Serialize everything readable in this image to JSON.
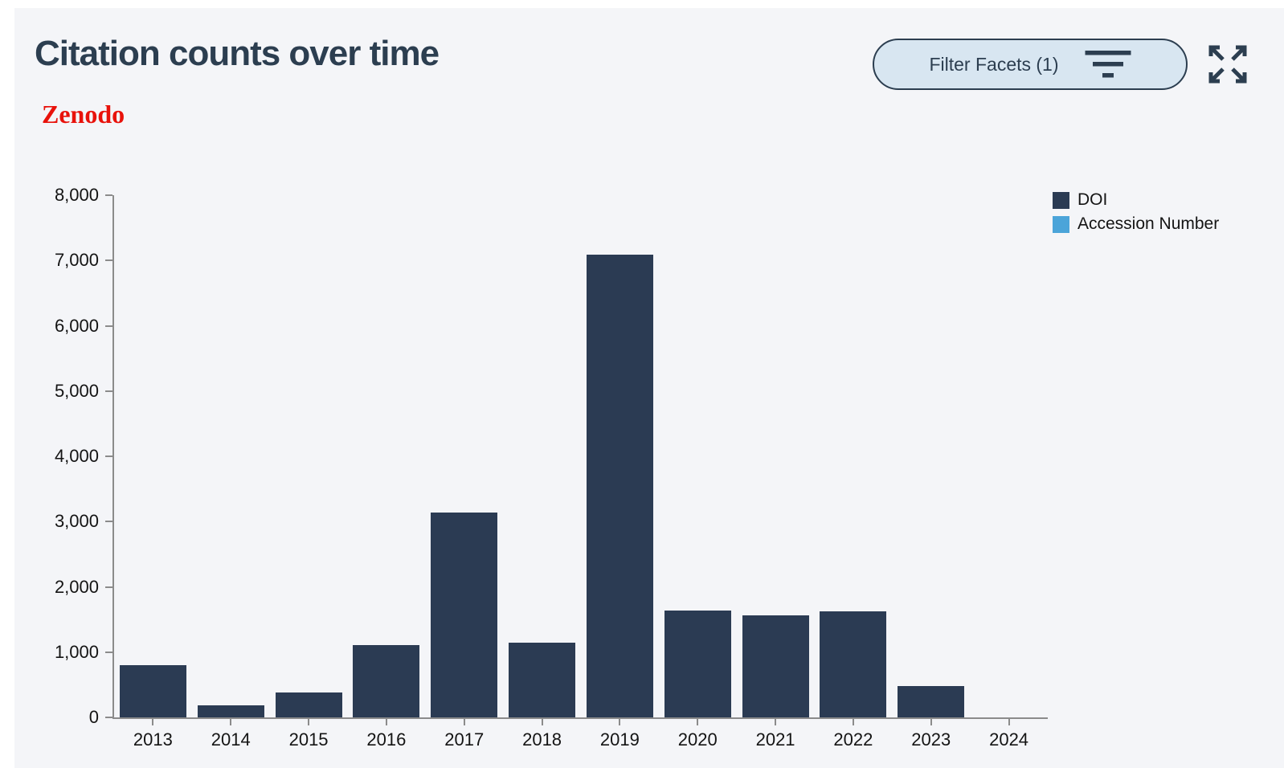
{
  "page": {
    "title": "Citation counts over time",
    "source_label": "Zenodo"
  },
  "toolbar": {
    "filter_button_label": "Filter Facets (1)"
  },
  "colors": {
    "panel_background": "#f4f5f8",
    "title_text": "#2c3e50",
    "source_red": "#e8120b",
    "button_fill": "#d8e6f1",
    "button_border": "#2c3e50",
    "axis_gray": "#8b8b8b",
    "doi_navy": "#2b3b53",
    "accession_blue": "#4ba4d9"
  },
  "chart_data": {
    "type": "bar",
    "title": "Citation counts over time",
    "categories": [
      "2013",
      "2014",
      "2015",
      "2016",
      "2017",
      "2018",
      "2019",
      "2020",
      "2021",
      "2022",
      "2023",
      "2024"
    ],
    "series": [
      {
        "name": "DOI",
        "color": "#2b3b53",
        "values": [
          800,
          180,
          380,
          1110,
          3140,
          1140,
          7090,
          1640,
          1560,
          1630,
          480,
          0
        ]
      },
      {
        "name": "Accession Number",
        "color": "#4ba4d9",
        "values": [
          0,
          0,
          0,
          0,
          0,
          0,
          0,
          0,
          0,
          0,
          0,
          0
        ]
      }
    ],
    "xlabel": "",
    "ylabel": "",
    "ylim": [
      0,
      8000
    ],
    "yticks": [
      0,
      1000,
      2000,
      3000,
      4000,
      5000,
      6000,
      7000,
      8000
    ],
    "ytick_labels": [
      "0",
      "1,000",
      "2,000",
      "3,000",
      "4,000",
      "5,000",
      "6,000",
      "7,000",
      "8,000"
    ],
    "grid": false,
    "legend_position": "top-right"
  }
}
